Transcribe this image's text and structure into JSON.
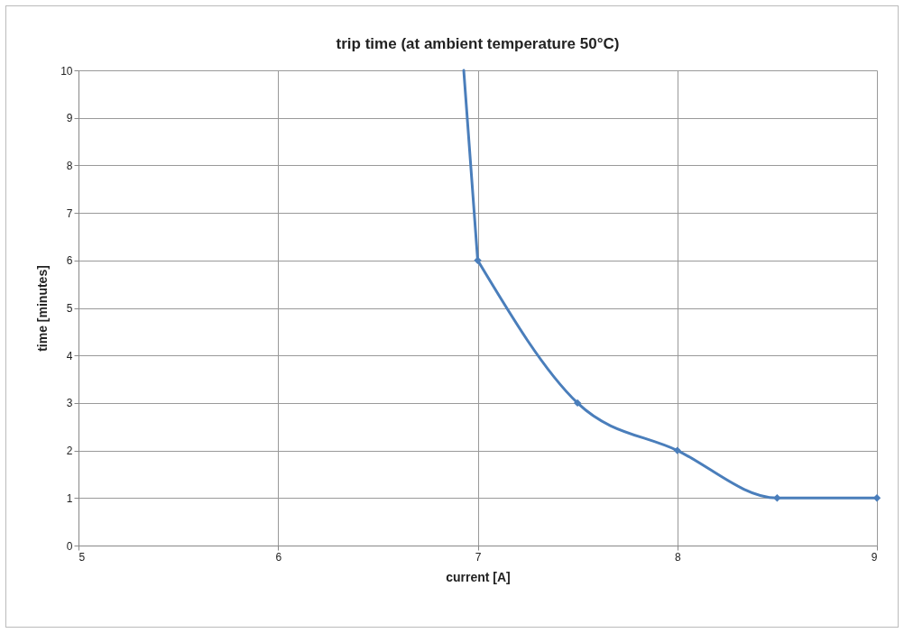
{
  "chart_data": {
    "type": "line",
    "title": "trip time (at ambient temperature 50°C)",
    "xlabel": "current [A]",
    "ylabel": "time [minutes]",
    "xlim": [
      5,
      9
    ],
    "xticks": [
      5,
      6,
      7,
      8,
      9
    ],
    "ylim": [
      0,
      10
    ],
    "yticks": [
      0,
      1,
      2,
      3,
      4,
      5,
      6,
      7,
      8,
      9,
      10
    ],
    "grid": true,
    "series": [
      {
        "color": "#4a7ebb",
        "x": [
          6.93,
          7
        ],
        "values": [
          10,
          6
        ]
      },
      {
        "color": "#4a7ebb",
        "x": [
          7,
          7.5,
          8,
          8.5,
          9
        ],
        "values": [
          6,
          3,
          2,
          1,
          1
        ],
        "marker": "diamond"
      }
    ]
  }
}
